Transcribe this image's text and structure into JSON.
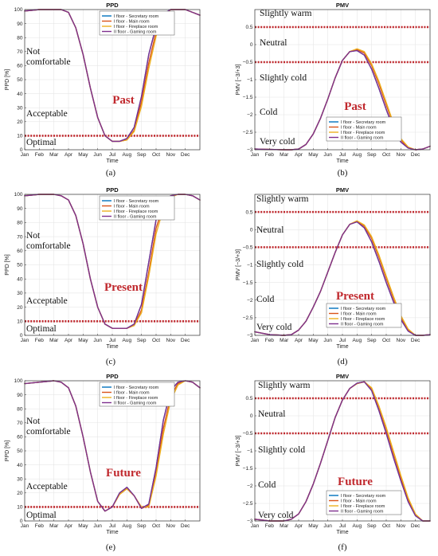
{
  "figure": {
    "months": [
      "Jan",
      "Feb",
      "Mar",
      "Apr",
      "May",
      "Jun",
      "Jul",
      "Aug",
      "Sep",
      "Oct",
      "Nov",
      "Dec"
    ],
    "xlabel": "Time",
    "series_names": [
      "I floor - Secretary room",
      "I floor - Main room",
      "I floor - Fireplace room",
      "II floor - Gaming room"
    ],
    "series_colors": [
      "#0072bd",
      "#d95319",
      "#edb120",
      "#7e2f8e"
    ],
    "threshold_color": "#c0282d",
    "zone_label_color": "#111111",
    "era_color": "#c0282d"
  },
  "chart_data": [
    {
      "id": "a",
      "type": "line",
      "title": "PPD",
      "ylabel": "PPD [%]",
      "era": "Past",
      "caption": "(a)",
      "xlim": [
        0,
        12
      ],
      "ylim": [
        0,
        100
      ],
      "yticks": [
        0,
        10,
        20,
        30,
        40,
        50,
        60,
        70,
        80,
        90,
        100
      ],
      "thresholds": [
        10
      ],
      "zones": [
        "Not comfortable",
        "Acceptable",
        "Optimal"
      ],
      "x": [
        0,
        1,
        2,
        2.5,
        3,
        3.5,
        4,
        4.5,
        5,
        5.5,
        6,
        6.5,
        7,
        7.5,
        8,
        8.5,
        9,
        9.5,
        10,
        10.5,
        11,
        11.5,
        12
      ],
      "series": [
        {
          "name": "I floor - Secretary room",
          "values": [
            99,
            100,
            100,
            100,
            98,
            87,
            68,
            44,
            23,
            10,
            6,
            6,
            8,
            16,
            38,
            68,
            88,
            97,
            100,
            100,
            100,
            98,
            96
          ]
        },
        {
          "name": "I floor - Main room",
          "values": [
            99,
            100,
            100,
            100,
            98,
            87,
            68,
            44,
            23,
            10,
            6,
            6,
            7,
            14,
            34,
            62,
            84,
            96,
            100,
            100,
            100,
            98,
            96
          ]
        },
        {
          "name": "I floor - Fireplace room",
          "values": [
            99,
            100,
            100,
            100,
            98,
            87,
            68,
            44,
            23,
            10,
            6,
            6,
            7,
            13,
            31,
            58,
            81,
            95,
            100,
            100,
            100,
            98,
            96
          ]
        },
        {
          "name": "II floor - Gaming room",
          "values": [
            99,
            100,
            100,
            100,
            98,
            87,
            68,
            44,
            23,
            10,
            6,
            6,
            8,
            16,
            38,
            68,
            88,
            97,
            100,
            100,
            100,
            98,
            96
          ]
        }
      ]
    },
    {
      "id": "b",
      "type": "line",
      "title": "PMV",
      "ylabel": "PMV [−3/+3]",
      "era": "Past",
      "caption": "(b)",
      "xlim": [
        0,
        12
      ],
      "ylim": [
        -3,
        1
      ],
      "yticks": [
        -3,
        -2.5,
        -2,
        -1.5,
        -1,
        -0.5,
        0,
        0.5
      ],
      "thresholds": [
        0.5,
        -0.5
      ],
      "zones": [
        "Slightly warm",
        "Neutral",
        "Slightly cold",
        "Cold",
        "Very cold"
      ],
      "x": [
        0,
        1,
        2,
        2.5,
        3,
        3.5,
        4,
        4.5,
        5,
        5.5,
        6,
        6.5,
        7,
        7.5,
        8,
        8.5,
        9,
        9.5,
        10,
        10.5,
        11,
        11.5,
        12
      ],
      "series": [
        {
          "name": "I floor - Secretary room",
          "values": [
            -2.98,
            -2.99,
            -3,
            -3,
            -2.98,
            -2.85,
            -2.55,
            -2.1,
            -1.55,
            -0.95,
            -0.45,
            -0.2,
            -0.17,
            -0.3,
            -0.7,
            -1.25,
            -1.85,
            -2.4,
            -2.78,
            -2.95,
            -3,
            -2.98,
            -2.9
          ]
        },
        {
          "name": "I floor - Main room",
          "values": [
            -2.98,
            -2.99,
            -3,
            -3,
            -2.98,
            -2.85,
            -2.55,
            -2.1,
            -1.55,
            -0.95,
            -0.45,
            -0.2,
            -0.14,
            -0.24,
            -0.6,
            -1.12,
            -1.72,
            -2.3,
            -2.72,
            -2.94,
            -3,
            -2.98,
            -2.9
          ]
        },
        {
          "name": "I floor - Fireplace room",
          "values": [
            -2.98,
            -2.99,
            -3,
            -3,
            -2.98,
            -2.85,
            -2.55,
            -2.1,
            -1.55,
            -0.95,
            -0.45,
            -0.2,
            -0.12,
            -0.2,
            -0.55,
            -1.05,
            -1.65,
            -2.25,
            -2.68,
            -2.92,
            -3,
            -2.98,
            -2.9
          ]
        },
        {
          "name": "II floor - Gaming room",
          "values": [
            -2.98,
            -2.99,
            -3,
            -3,
            -2.98,
            -2.85,
            -2.55,
            -2.1,
            -1.55,
            -0.95,
            -0.45,
            -0.2,
            -0.17,
            -0.3,
            -0.7,
            -1.25,
            -1.85,
            -2.4,
            -2.78,
            -2.95,
            -3,
            -2.98,
            -2.9
          ]
        }
      ]
    },
    {
      "id": "c",
      "type": "line",
      "title": "PPD",
      "ylabel": "PPD [%]",
      "era": "Present",
      "caption": "(c)",
      "xlim": [
        0,
        12
      ],
      "ylim": [
        0,
        100
      ],
      "yticks": [
        0,
        10,
        20,
        30,
        40,
        50,
        60,
        70,
        80,
        90,
        100
      ],
      "thresholds": [
        10
      ],
      "zones": [
        "Not comfortable",
        "Acceptable",
        "Optimal"
      ],
      "x": [
        0,
        1,
        2,
        2.5,
        3,
        3.5,
        4,
        4.5,
        5,
        5.5,
        6,
        6.5,
        7,
        7.5,
        8,
        8.5,
        9,
        9.5,
        10,
        10.5,
        11,
        11.5,
        12
      ],
      "series": [
        {
          "name": "I floor - Secretary room",
          "values": [
            99,
            100,
            100,
            99,
            96,
            85,
            65,
            40,
            20,
            8,
            5,
            5,
            5,
            8,
            22,
            52,
            82,
            95,
            99,
            100,
            100,
            99,
            96
          ]
        },
        {
          "name": "I floor - Main room",
          "values": [
            99,
            100,
            100,
            99,
            96,
            85,
            65,
            40,
            20,
            8,
            5,
            5,
            5,
            7,
            18,
            45,
            76,
            92,
            99,
            100,
            100,
            99,
            96
          ]
        },
        {
          "name": "I floor - Fireplace room",
          "values": [
            99,
            100,
            100,
            99,
            96,
            85,
            65,
            40,
            20,
            8,
            5,
            5,
            5,
            7,
            16,
            42,
            72,
            90,
            98,
            100,
            100,
            99,
            96
          ]
        },
        {
          "name": "II floor - Gaming room",
          "values": [
            99,
            100,
            100,
            99,
            96,
            85,
            65,
            40,
            20,
            8,
            5,
            5,
            5,
            8,
            22,
            52,
            82,
            95,
            99,
            100,
            100,
            99,
            96
          ]
        }
      ]
    },
    {
      "id": "d",
      "type": "line",
      "title": "PMV",
      "ylabel": "PMV [−3/+3]",
      "era": "Present",
      "caption": "(d)",
      "xlim": [
        0,
        12
      ],
      "ylim": [
        -3,
        1
      ],
      "yticks": [
        -3,
        -2.5,
        -2,
        -1.5,
        -1,
        -0.5,
        0,
        0.5
      ],
      "thresholds": [
        0.5,
        -0.5
      ],
      "zones": [
        "Slightly warm",
        "Neutral",
        "Slightly cold",
        "Cold",
        "Very cold"
      ],
      "x": [
        0,
        1,
        2,
        2.5,
        3,
        3.5,
        4,
        4.5,
        5,
        5.5,
        6,
        6.5,
        7,
        7.5,
        8,
        8.5,
        9,
        9.5,
        10,
        10.5,
        11,
        11.5,
        12
      ],
      "series": [
        {
          "name": "I floor - Secretary room",
          "values": [
            -2.9,
            -2.98,
            -3,
            -2.98,
            -2.85,
            -2.6,
            -2.2,
            -1.75,
            -1.2,
            -0.65,
            -0.15,
            0.15,
            0.22,
            0.05,
            -0.35,
            -0.9,
            -1.5,
            -2.05,
            -2.55,
            -2.88,
            -3,
            -3,
            -2.98
          ]
        },
        {
          "name": "I floor - Main room",
          "values": [
            -2.9,
            -2.98,
            -3,
            -2.98,
            -2.85,
            -2.6,
            -2.2,
            -1.75,
            -1.2,
            -0.65,
            -0.15,
            0.15,
            0.24,
            0.1,
            -0.25,
            -0.78,
            -1.38,
            -1.95,
            -2.48,
            -2.84,
            -3,
            -3,
            -2.98
          ]
        },
        {
          "name": "I floor - Fireplace room",
          "values": [
            -2.9,
            -2.98,
            -3,
            -2.98,
            -2.85,
            -2.6,
            -2.2,
            -1.75,
            -1.2,
            -0.65,
            -0.15,
            0.15,
            0.25,
            0.13,
            -0.2,
            -0.72,
            -1.32,
            -1.9,
            -2.44,
            -2.82,
            -3,
            -3,
            -2.98
          ]
        },
        {
          "name": "II floor - Gaming room",
          "values": [
            -2.9,
            -2.98,
            -3,
            -2.98,
            -2.85,
            -2.6,
            -2.2,
            -1.75,
            -1.2,
            -0.65,
            -0.15,
            0.15,
            0.22,
            0.05,
            -0.35,
            -0.9,
            -1.5,
            -2.05,
            -2.55,
            -2.88,
            -3,
            -3,
            -2.98
          ]
        }
      ]
    },
    {
      "id": "e",
      "type": "line",
      "title": "PPD",
      "ylabel": "PPD [%]",
      "era": "Future",
      "caption": "(e)",
      "xlim": [
        0,
        12
      ],
      "ylim": [
        0,
        100
      ],
      "yticks": [
        0,
        10,
        20,
        30,
        40,
        50,
        60,
        70,
        80,
        90,
        100
      ],
      "thresholds": [
        10
      ],
      "zones": [
        "Not comfortable",
        "Acceptable",
        "Optimal"
      ],
      "x": [
        0,
        1,
        2,
        2.5,
        3,
        3.5,
        4,
        4.5,
        5,
        5.5,
        6,
        6.5,
        7,
        7.5,
        8,
        8.5,
        9,
        9.5,
        10,
        10.5,
        11,
        11.5,
        12
      ],
      "series": [
        {
          "name": "I floor - Secretary room",
          "values": [
            98,
            99,
            100,
            99,
            95,
            82,
            60,
            35,
            14,
            7,
            10,
            20,
            24,
            18,
            9,
            12,
            38,
            72,
            93,
            99,
            100,
            99,
            95
          ]
        },
        {
          "name": "I floor - Main room",
          "values": [
            98,
            99,
            100,
            99,
            95,
            82,
            60,
            35,
            14,
            7,
            10,
            19,
            23,
            18,
            9,
            11,
            34,
            66,
            89,
            98,
            100,
            99,
            95
          ]
        },
        {
          "name": "I floor - Fireplace room",
          "values": [
            98,
            99,
            100,
            99,
            95,
            82,
            60,
            35,
            14,
            7,
            10,
            19,
            23,
            18,
            10,
            10,
            32,
            62,
            86,
            97,
            100,
            99,
            95
          ]
        },
        {
          "name": "II floor - Gaming room",
          "values": [
            98,
            99,
            100,
            99,
            95,
            82,
            60,
            35,
            14,
            7,
            10,
            20,
            24,
            18,
            9,
            12,
            38,
            72,
            93,
            99,
            100,
            99,
            95
          ]
        }
      ]
    },
    {
      "id": "f",
      "type": "line",
      "title": "PMV",
      "ylabel": "PMV [−3/+3]",
      "era": "Future",
      "caption": "(f)",
      "xlim": [
        0,
        12
      ],
      "ylim": [
        -3,
        1
      ],
      "yticks": [
        -3,
        -2.5,
        -2,
        -1.5,
        -1,
        -0.5,
        0,
        0.5
      ],
      "thresholds": [
        0.5,
        -0.5
      ],
      "zones": [
        "Slightly warm",
        "Neutral",
        "Slightly cold",
        "Cold",
        "Very cold"
      ],
      "x": [
        0,
        1,
        2,
        2.5,
        3,
        3.5,
        4,
        4.5,
        5,
        5.5,
        6,
        6.5,
        7,
        7.5,
        8,
        8.5,
        9,
        9.5,
        10,
        10.5,
        11,
        11.5,
        12
      ],
      "series": [
        {
          "name": "I floor - Secretary room",
          "values": [
            -2.95,
            -3,
            -3,
            -2.95,
            -2.8,
            -2.45,
            -1.95,
            -1.35,
            -0.7,
            -0.05,
            0.45,
            0.78,
            0.93,
            0.97,
            0.72,
            0.15,
            -0.5,
            -1.2,
            -1.85,
            -2.45,
            -2.85,
            -3,
            -3
          ]
        },
        {
          "name": "I floor - Main room",
          "values": [
            -2.95,
            -3,
            -3,
            -2.95,
            -2.8,
            -2.45,
            -1.95,
            -1.35,
            -0.7,
            -0.05,
            0.45,
            0.78,
            0.92,
            0.97,
            0.78,
            0.25,
            -0.38,
            -1.08,
            -1.75,
            -2.38,
            -2.82,
            -3,
            -3
          ]
        },
        {
          "name": "I floor - Fireplace room",
          "values": [
            -2.95,
            -3,
            -3,
            -2.95,
            -2.8,
            -2.45,
            -1.95,
            -1.35,
            -0.7,
            -0.05,
            0.45,
            0.78,
            0.92,
            0.97,
            0.8,
            0.28,
            -0.33,
            -1.02,
            -1.7,
            -2.34,
            -2.8,
            -3,
            -3
          ]
        },
        {
          "name": "II floor - Gaming room",
          "values": [
            -2.95,
            -3,
            -3,
            -2.95,
            -2.8,
            -2.45,
            -1.95,
            -1.35,
            -0.7,
            -0.05,
            0.45,
            0.78,
            0.93,
            0.97,
            0.72,
            0.15,
            -0.5,
            -1.2,
            -1.85,
            -2.45,
            -2.85,
            -3,
            -3
          ]
        }
      ]
    }
  ]
}
